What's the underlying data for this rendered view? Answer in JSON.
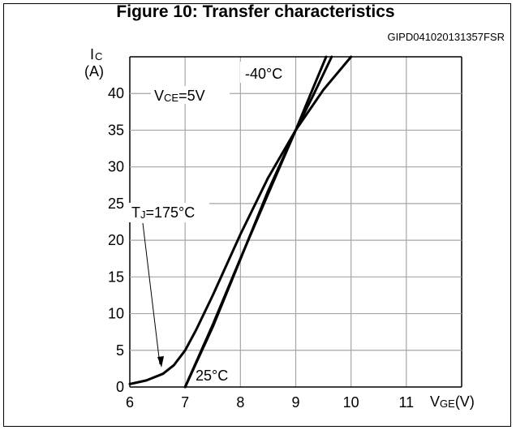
{
  "figure": {
    "title": "Figure 10: Transfer characteristics",
    "code": "GIPD041020131357FSR"
  },
  "chart_data": {
    "type": "line",
    "title": "Figure 10: Transfer characteristics",
    "xlabel": {
      "main": "V",
      "sub": "GE",
      "unit": "(V)"
    },
    "ylabel": {
      "main": "I",
      "sub": "C",
      "unit": "(A)"
    },
    "xlim": [
      6,
      12
    ],
    "ylim": [
      0,
      45
    ],
    "xticks": [
      6,
      7,
      8,
      9,
      10,
      11
    ],
    "yticks": [
      0,
      5,
      10,
      15,
      20,
      25,
      30,
      35,
      40
    ],
    "grid": true,
    "annotations": {
      "condition": {
        "main": "V",
        "sub": "CE",
        "rest": "=5V"
      },
      "t_hot": {
        "main": "T",
        "sub": "J",
        "rest": "=175°C"
      },
      "t_cold": "-40°C",
      "t_room": "25°C"
    },
    "series": [
      {
        "name": "TJ=175°C",
        "x": [
          6.0,
          6.3,
          6.6,
          6.8,
          7.0,
          7.2,
          7.5,
          8.0,
          8.5,
          9.0,
          9.5,
          10.0
        ],
        "y": [
          0.4,
          0.9,
          1.8,
          3.0,
          5.0,
          7.8,
          12.5,
          20.8,
          28.5,
          35.0,
          40.5,
          45.0
        ]
      },
      {
        "name": "25°C",
        "x": [
          7.0,
          7.5,
          8.0,
          8.5,
          9.0,
          9.3,
          9.55
        ],
        "y": [
          0.0,
          8.5,
          17.5,
          26.3,
          35.0,
          40.5,
          45.0
        ]
      },
      {
        "name": "-40°C",
        "x": [
          7.0,
          7.5,
          8.0,
          8.5,
          9.0,
          9.3,
          9.65
        ],
        "y": [
          0.0,
          8.2,
          17.4,
          26.7,
          35.0,
          39.5,
          45.0
        ]
      }
    ]
  }
}
